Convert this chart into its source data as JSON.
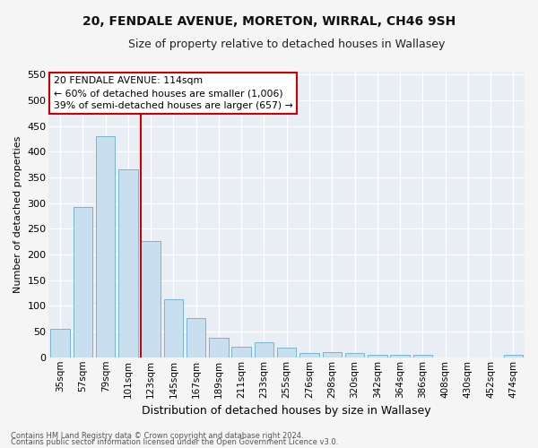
{
  "title": "20, FENDALE AVENUE, MORETON, WIRRAL, CH46 9SH",
  "subtitle": "Size of property relative to detached houses in Wallasey",
  "xlabel": "Distribution of detached houses by size in Wallasey",
  "ylabel": "Number of detached properties",
  "categories": [
    "35sqm",
    "57sqm",
    "79sqm",
    "101sqm",
    "123sqm",
    "145sqm",
    "167sqm",
    "189sqm",
    "211sqm",
    "233sqm",
    "255sqm",
    "276sqm",
    "298sqm",
    "320sqm",
    "342sqm",
    "364sqm",
    "386sqm",
    "408sqm",
    "430sqm",
    "452sqm",
    "474sqm"
  ],
  "values": [
    55,
    293,
    430,
    365,
    227,
    113,
    76,
    38,
    21,
    29,
    18,
    9,
    10,
    9,
    4,
    5,
    5,
    0,
    0,
    0,
    4
  ],
  "bar_color": "#c9dff0",
  "bar_edge_color": "#7ab3d4",
  "property_line_label": "20 FENDALE AVENUE: 114sqm",
  "annotation_line1": "← 60% of detached houses are smaller (1,006)",
  "annotation_line2": "39% of semi-detached houses are larger (657) →",
  "annotation_box_facecolor": "#ffffff",
  "annotation_box_edgecolor": "#cc0000",
  "vline_color": "#cc0000",
  "vline_x": 3.57,
  "ylim": [
    0,
    555
  ],
  "yticks": [
    0,
    50,
    100,
    150,
    200,
    250,
    300,
    350,
    400,
    450,
    500,
    550
  ],
  "plot_bg_color": "#e8eef4",
  "fig_bg_color": "#f5f5f5",
  "grid_color": "#ffffff",
  "footer1": "Contains HM Land Registry data © Crown copyright and database right 2024.",
  "footer2": "Contains public sector information licensed under the Open Government Licence v3.0."
}
